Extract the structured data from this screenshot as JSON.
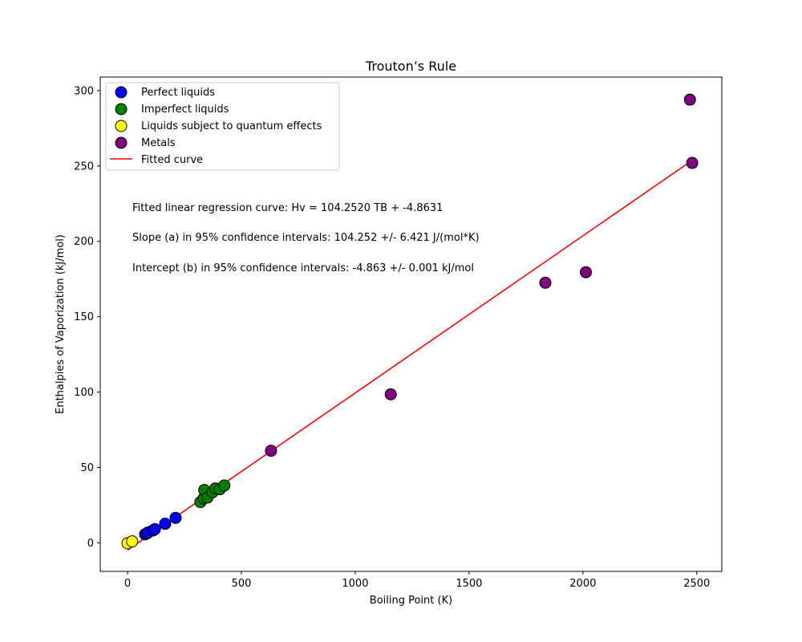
{
  "chart_data": {
    "type": "scatter",
    "title": "Trouton’s Rule",
    "xlabel": "Boiling Point (K)",
    "ylabel": "Enthalpies of Vaporization (kJ/mol)",
    "xlim": [
      -120,
      2610
    ],
    "ylim": [
      -19,
      309
    ],
    "xticks": [
      0,
      500,
      1000,
      1500,
      2000,
      2500
    ],
    "yticks": [
      0,
      50,
      100,
      150,
      200,
      250,
      300
    ],
    "grid": false,
    "legend_position": "top-left",
    "series": [
      {
        "name": "Perfect liquids",
        "color": "#0000ff",
        "x": [
          77,
          87,
          90,
          112,
          120,
          165,
          211
        ],
        "y": [
          5.6,
          6.4,
          6.8,
          8.2,
          9.0,
          12.6,
          16.5
        ]
      },
      {
        "name": "Imperfect liquids",
        "color": "#008000",
        "x": [
          320,
          334,
          337,
          351,
          373,
          385,
          405,
          425
        ],
        "y": [
          27.0,
          29.5,
          35.0,
          30.0,
          33.5,
          36.0,
          35.5,
          38.0
        ]
      },
      {
        "name": "Liquids subject to quantum effects",
        "color": "#ffff00",
        "x": [
          0,
          20
        ],
        "y": [
          -0.3,
          0.9
        ]
      },
      {
        "name": "Metals",
        "color": "#800080",
        "x": [
          630,
          1156,
          1835,
          2013,
          2470,
          2480
        ],
        "y": [
          61.0,
          98.5,
          172.5,
          179.5,
          294.0,
          252.0
        ]
      }
    ],
    "fitted_curve": {
      "name": "Fitted curve",
      "color": "#ff0000",
      "x": [
        0,
        2480
      ]
    },
    "annotations": [
      "Fitted linear regression curve: Hv = 104.2520 TB + -4.8631",
      "Slope (a) in 95% confidence intervals: 104.252 +/- 6.421 J/(mol*K)",
      "Intercept (b) in 95% confidence intervals: -4.863 +/- 0.001 kJ/mol"
    ]
  }
}
